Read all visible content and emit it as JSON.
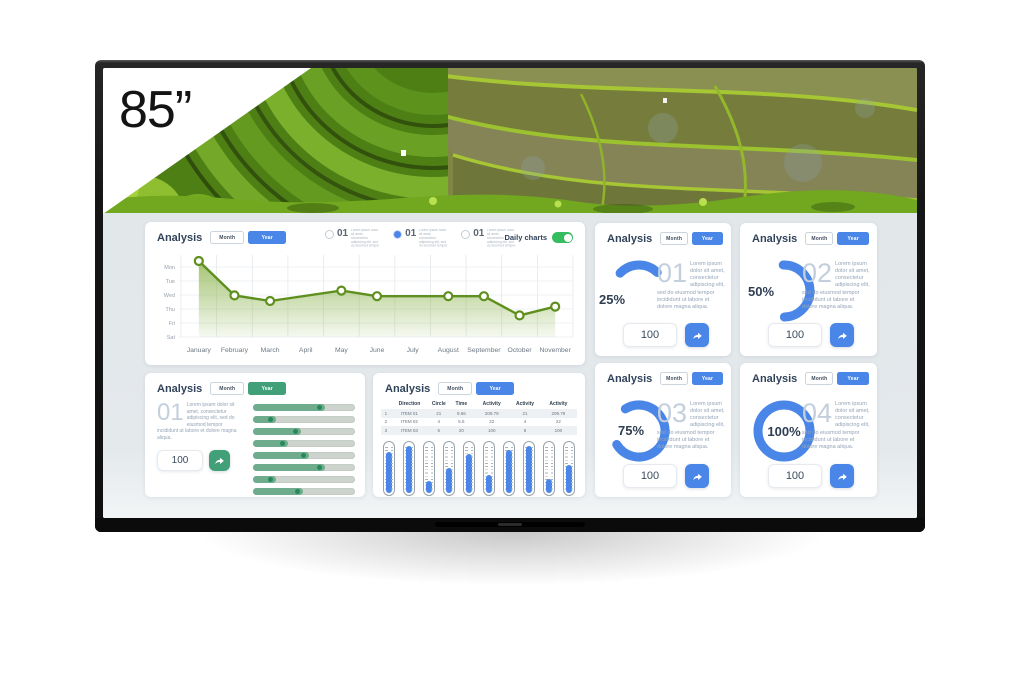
{
  "product": {
    "size_label": "85”"
  },
  "colors": {
    "accent_blue": "#4a86e8",
    "accent_green": "#41a078",
    "chart_olive": "#5f8f1e",
    "toggle_green": "#36bd5f",
    "dashboard_bg": "#e3e8eb"
  },
  "dashboard": {
    "main_panel": {
      "title": "Analysis",
      "month_label": "Month",
      "year_label": "Year",
      "daily_charts_label": "Daily charts",
      "daily_charts_on": true,
      "radio_text": "Lorem ipsum dolor sit amet, consectetur adipiscing elit, sed do eiusmod tempor.",
      "radio_items": [
        {
          "num": "01",
          "selected": false
        },
        {
          "num": "01",
          "selected": true
        },
        {
          "num": "01",
          "selected": false
        }
      ],
      "chart_data": {
        "type": "line",
        "categories": [
          "January",
          "February",
          "March",
          "April",
          "May",
          "June",
          "July",
          "August",
          "September",
          "October",
          "November"
        ],
        "day_labels": [
          "Mon",
          "Tue",
          "Wed",
          "Thu",
          "Fri",
          "Sat"
        ],
        "points": [
          {
            "month": "January",
            "value": 95
          },
          {
            "month": "February",
            "value": 52
          },
          {
            "month": "March",
            "value": 45
          },
          {
            "month": "May",
            "value": 58
          },
          {
            "month": "June",
            "value": 51
          },
          {
            "month": "August",
            "value": 51
          },
          {
            "month": "September",
            "value": 51
          },
          {
            "month": "October",
            "value": 27
          },
          {
            "month": "November",
            "value": 38
          }
        ],
        "ylim": [
          0,
          100
        ],
        "grid": true,
        "line_color": "#5f8f1e"
      }
    },
    "slider_panel": {
      "title": "Analysis",
      "month_label": "Month",
      "year_label": "Year",
      "num": "01",
      "text": "Lorem ipsum dolor sit amet, consectetur adipiscing elit, sed do eiusmod tempor incididunt ut labore et dolore magna aliqua.",
      "value": "100",
      "sliders": [
        71,
        23,
        47,
        34,
        55,
        71,
        23,
        49
      ]
    },
    "table_panel": {
      "title": "Analysis",
      "month_label": "Month",
      "year_label": "Year",
      "table": {
        "headers": [
          "",
          "Direction",
          "Circle",
          "Time",
          "Activity",
          "Activity",
          "Activity"
        ],
        "rows": [
          [
            "1",
            "ITEM 01",
            "21",
            "9.66",
            "209.79",
            "21",
            "209.79"
          ],
          [
            "2",
            "ITEM 02",
            "4",
            "5.5",
            "22",
            "4",
            "22"
          ],
          [
            "3",
            "ITEM 03",
            "5",
            "20",
            "100",
            "5",
            "100"
          ]
        ]
      },
      "gauges": [
        85,
        95,
        30,
        55,
        80,
        42,
        88,
        95,
        33,
        60
      ]
    },
    "stat_panels": [
      {
        "title": "Analysis",
        "month_label": "Month",
        "year_label": "Year",
        "pct": 25,
        "pct_label": "25%",
        "num": "01",
        "text": "Lorem ipsum dolor sit amet, consectetur adipiscing elit, sed do eiusmod tempor incididunt ut labore et dolore magna aliqua.",
        "value": "100"
      },
      {
        "title": "Analysis",
        "month_label": "Month",
        "year_label": "Year",
        "pct": 50,
        "pct_label": "50%",
        "num": "02",
        "text": "Lorem ipsum dolor sit amet, consectetur adipiscing elit, sed do eiusmod tempor incididunt ut labore et dolore magna aliqua.",
        "value": "100"
      },
      {
        "title": "Analysis",
        "month_label": "Month",
        "year_label": "Year",
        "pct": 75,
        "pct_label": "75%",
        "num": "03",
        "text": "Lorem ipsum dolor sit amet, consectetur adipiscing elit, sed do eiusmod tempor incididunt ut labore et dolore magna aliqua.",
        "value": "100"
      },
      {
        "title": "Analysis",
        "month_label": "Month",
        "year_label": "Year",
        "pct": 100,
        "pct_label": "100%",
        "num": "04",
        "text": "Lorem ipsum dolor sit amet, consectetur adipiscing elit, sed do eiusmod tempor incididunt ut labore et dolore magna aliqua.",
        "value": "100"
      }
    ]
  }
}
